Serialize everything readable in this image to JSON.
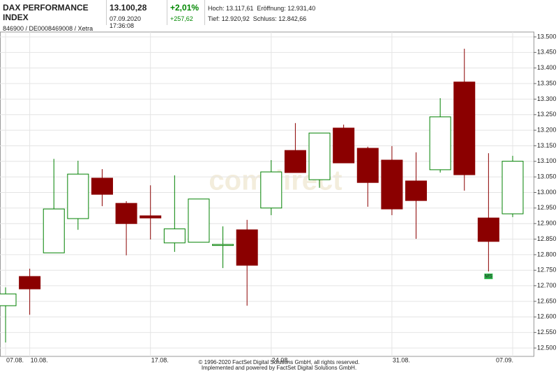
{
  "header": {
    "name": "DAX PERFORMANCE INDEX",
    "ids": "846900 / DE0008469008 / Xetra",
    "price": "13.100,28",
    "time": "07.09.2020 17:36:08",
    "change_pct": "+2,01%",
    "change_abs": "+257,62",
    "high": "Hoch: 13.117,61",
    "open": "Eröffnung: 12.931,40",
    "low": "Tief: 12.920,92",
    "close": "Schluss: 12.842,66"
  },
  "chart_data": {
    "type": "candlestick",
    "categories": [
      "07.08.",
      "10.08.",
      null,
      null,
      null,
      null,
      "17.08.",
      null,
      null,
      null,
      null,
      "24.08.",
      null,
      null,
      null,
      null,
      "31.08.",
      null,
      null,
      null,
      null,
      "07.09."
    ],
    "open": [
      12636,
      12730,
      12806,
      12916,
      13046,
      12965,
      12925,
      12838,
      12840,
      12831,
      12880,
      12950,
      13135,
      13041,
      13207,
      13142,
      13104,
      13037,
      13073,
      13355,
      12918,
      12931.4
    ],
    "high": [
      12695,
      12755,
      13108,
      13102,
      13075,
      12972,
      13023,
      13055,
      12979,
      12891,
      12912,
      13104,
      13223,
      13191,
      13218,
      13147,
      13149,
      13129,
      13303,
      13462,
      13126,
      13117.61
    ],
    "low": [
      12518,
      12607,
      12806,
      12880,
      12956,
      12798,
      12849,
      12809,
      12840,
      12757,
      12636,
      12927,
      13064,
      13015,
      13095,
      12954,
      12927,
      12851,
      13064,
      13006,
      12746,
      12920.92
    ],
    "close": [
      12674,
      12690,
      12947,
      13059,
      12994,
      12900,
      12918,
      12883,
      12979,
      12833,
      12766,
      13066,
      13064,
      13191,
      13095,
      13032,
      12947,
      12974,
      13243,
      13057,
      12842.66,
      13100.28
    ],
    "up_color": "#008000",
    "down_color": "#8b0000",
    "ylim": [
      12500,
      13500
    ],
    "yticks": [
      {
        "value": 12500,
        "label": "12.500"
      },
      {
        "value": 12550,
        "label": "12.550"
      },
      {
        "value": 12600,
        "label": "12.600"
      },
      {
        "value": 12650,
        "label": "12.650"
      },
      {
        "value": 12700,
        "label": "12.700"
      },
      {
        "value": 12750,
        "label": "12.750"
      },
      {
        "value": 12800,
        "label": "12.800"
      },
      {
        "value": 12850,
        "label": "12.850"
      },
      {
        "value": 12900,
        "label": "12.900"
      },
      {
        "value": 12950,
        "label": "12.950"
      },
      {
        "value": 13000,
        "label": "13.000"
      },
      {
        "value": 13050,
        "label": "13.050"
      },
      {
        "value": 13100,
        "label": "13.100"
      },
      {
        "value": 13150,
        "label": "13.150"
      },
      {
        "value": 13200,
        "label": "13.200"
      },
      {
        "value": 13250,
        "label": "13.250"
      },
      {
        "value": 13300,
        "label": "13.300"
      },
      {
        "value": 13350,
        "label": "13.350"
      },
      {
        "value": 13400,
        "label": "13.400"
      },
      {
        "value": 13450,
        "label": "13.450"
      },
      {
        "value": 13500,
        "label": "13.500"
      }
    ],
    "grid": true,
    "annotation": "MS",
    "watermark": "comdirect",
    "footer": [
      "© 1996-2020 FactSet Digital Solutions GmbH, all rights reserved.",
      "Implemented and powered by FactSet Digital Solutions GmbH."
    ]
  }
}
